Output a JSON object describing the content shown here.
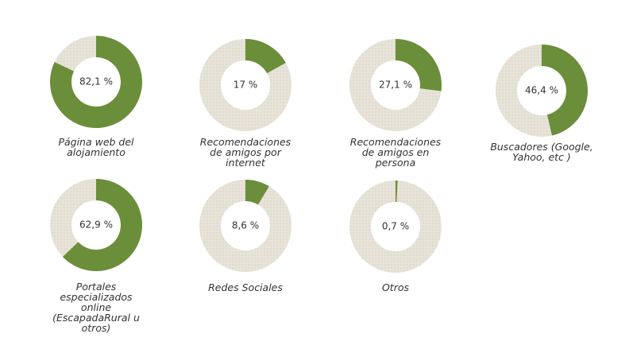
{
  "chart_data": [
    {
      "type": "pie",
      "title": "Página web del alojamiento",
      "values": [
        82.1
      ],
      "value_labels": [
        "82,1 %"
      ],
      "color": "#6b8e3a"
    },
    {
      "type": "pie",
      "title": "Recomendaciones de amigos por internet",
      "values": [
        17
      ],
      "value_labels": [
        "17 %"
      ],
      "color": "#6b8e3a"
    },
    {
      "type": "pie",
      "title": "Recomendaciones de amigos en persona",
      "values": [
        27.1
      ],
      "value_labels": [
        "27,1 %"
      ],
      "color": "#6b8e3a"
    },
    {
      "type": "pie",
      "title": "Buscadores (Google, Yahoo, etc )",
      "values": [
        46.4
      ],
      "value_labels": [
        "46,4 %"
      ],
      "color": "#6b8e3a"
    },
    {
      "type": "pie",
      "title": "Portales especializados online (EscapadaRural u otros)",
      "values": [
        62.9
      ],
      "value_labels": [
        "62,9 %"
      ],
      "color": "#6b8e3a"
    },
    {
      "type": "pie",
      "title": "Redes Sociales",
      "values": [
        8.6
      ],
      "value_labels": [
        "8,6 %"
      ],
      "color": "#6b8e3a"
    },
    {
      "type": "pie",
      "title": "Otros",
      "values": [
        0.7
      ],
      "value_labels": [
        "0,7 %"
      ],
      "color": "#6b8e3a"
    }
  ]
}
